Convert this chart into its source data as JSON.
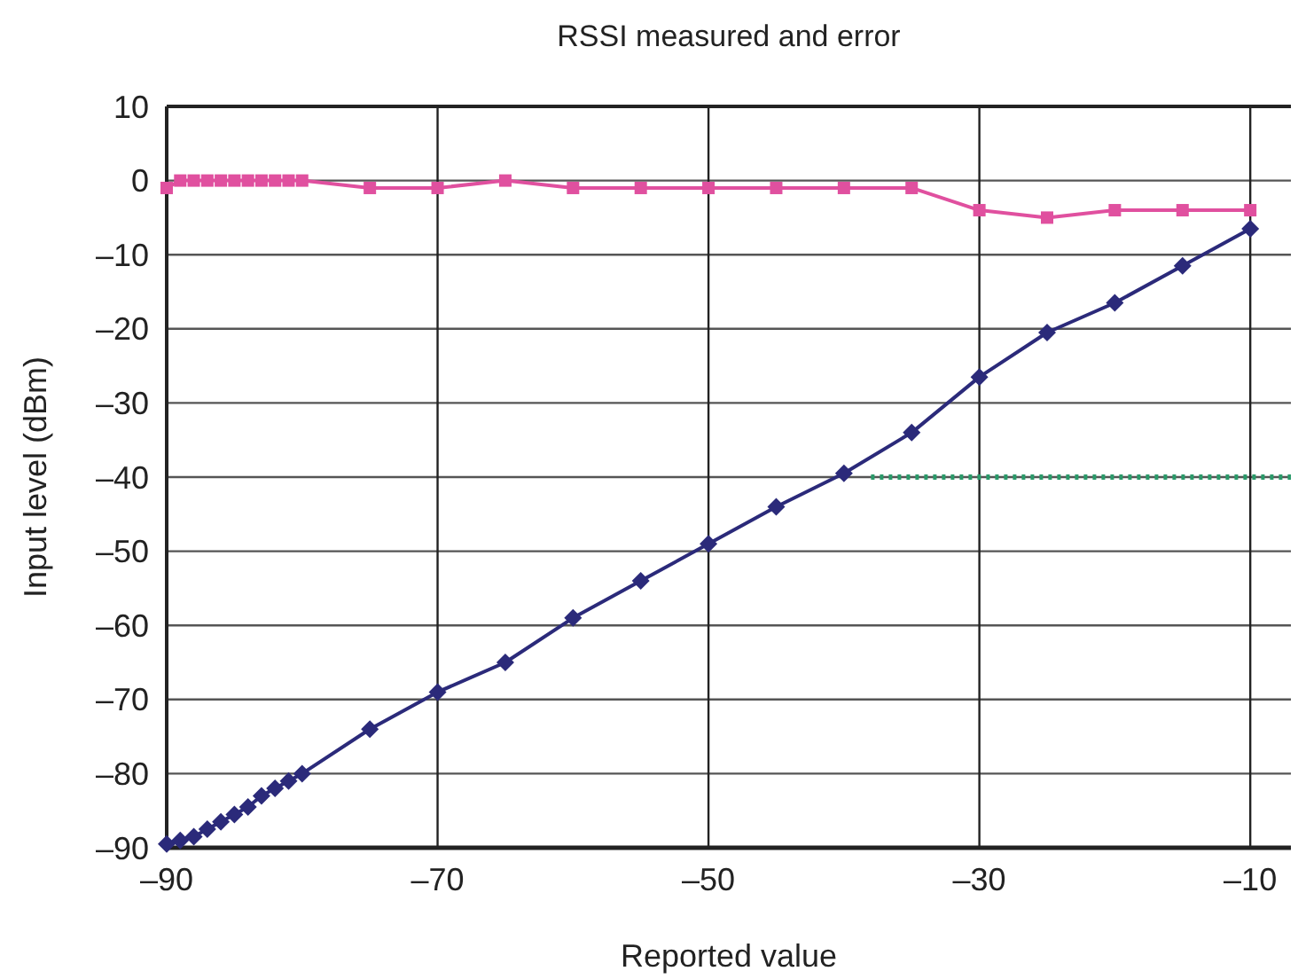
{
  "chart_data": {
    "type": "line",
    "title": "RSSI measured and error",
    "xlabel": "Reported value",
    "ylabel": "Input level (dBm)",
    "xlim": [
      -90,
      -7
    ],
    "xticks": [
      {
        "value": -90,
        "label": "–90"
      },
      {
        "value": -70,
        "label": "–70"
      },
      {
        "value": -50,
        "label": "–50"
      },
      {
        "value": -30,
        "label": "–30"
      },
      {
        "value": -10,
        "label": "–10"
      }
    ],
    "ylim": [
      -90,
      10
    ],
    "yticks": [
      10,
      0,
      {
        "value": -10,
        "label": "–10"
      },
      {
        "value": -20,
        "label": "–20"
      },
      {
        "value": -30,
        "label": "–30"
      },
      {
        "value": -40,
        "label": "–40"
      },
      {
        "value": -50,
        "label": "–50"
      },
      {
        "value": -60,
        "label": "–60"
      },
      {
        "value": -70,
        "label": "–70"
      },
      {
        "value": -80,
        "label": "–80"
      },
      {
        "value": -90,
        "label": "–90"
      }
    ],
    "grid": true,
    "series": [
      {
        "color": "#e0509f",
        "marker": "square",
        "line_style": "solid",
        "x": [
          -90,
          -89,
          -88,
          -87,
          -86,
          -85,
          -84,
          -83,
          -82,
          -81,
          -80,
          -75,
          -70,
          -65,
          -60,
          -55,
          -50,
          -45,
          -40,
          -35,
          -30,
          -25,
          -20,
          -15,
          -10
        ],
        "values": [
          -1,
          0,
          0,
          0,
          0,
          0,
          0,
          0,
          0,
          0,
          0,
          -1,
          -1,
          0,
          -1,
          -1,
          -1,
          -1,
          -1,
          -1,
          -4,
          -5,
          -4,
          -4,
          -4
        ]
      },
      {
        "color": "#2b2a7a",
        "marker": "diamond",
        "line_style": "solid",
        "x": [
          -90,
          -89,
          -88,
          -87,
          -86,
          -85,
          -84,
          -83,
          -82,
          -81,
          -80,
          -75,
          -70,
          -65,
          -60,
          -55,
          -50,
          -45,
          -40,
          -35,
          -30,
          -25,
          -20,
          -15,
          -10
        ],
        "values": [
          -89.5,
          -89,
          -88.5,
          -87.5,
          -86.5,
          -85.5,
          -84.5,
          -83,
          -82,
          -81,
          -80,
          -74,
          -69,
          -65,
          -59,
          -54,
          -49,
          -44,
          -39.5,
          -34,
          -26.5,
          -20.5,
          -16.5,
          -11.5,
          -6.5
        ]
      },
      {
        "color": "#2a9a6a",
        "marker": "none",
        "line_style": "dotted",
        "x": [
          -38,
          -7
        ],
        "values": [
          -40,
          -40
        ]
      }
    ]
  }
}
